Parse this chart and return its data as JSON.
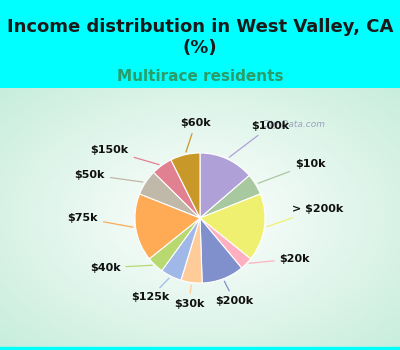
{
  "title": "Income distribution in West Valley, CA\n(%)",
  "subtitle": "Multirace residents",
  "background_top": "#00FFFF",
  "background_chart_color": "#c8ede0",
  "labels": [
    "$100k",
    "$10k",
    "> $200k",
    "$20k",
    "$200k",
    "$30k",
    "$125k",
    "$40k",
    "$75k",
    "$50k",
    "$150k",
    "$60k"
  ],
  "values": [
    13,
    5,
    16,
    3,
    10,
    5,
    5,
    4,
    16,
    6,
    5,
    7
  ],
  "colors": [
    "#b0a0d8",
    "#a8c8a0",
    "#f0f070",
    "#ffb0c0",
    "#8090cc",
    "#ffcc99",
    "#a0b8e8",
    "#b8d870",
    "#ffaa55",
    "#c0b8a8",
    "#e08090",
    "#c89828"
  ],
  "watermark": "City-Data.com",
  "title_fontsize": 13,
  "subtitle_fontsize": 11,
  "label_fontsize": 8,
  "title_color": "#1a1a1a",
  "subtitle_color": "#2a9d6a"
}
